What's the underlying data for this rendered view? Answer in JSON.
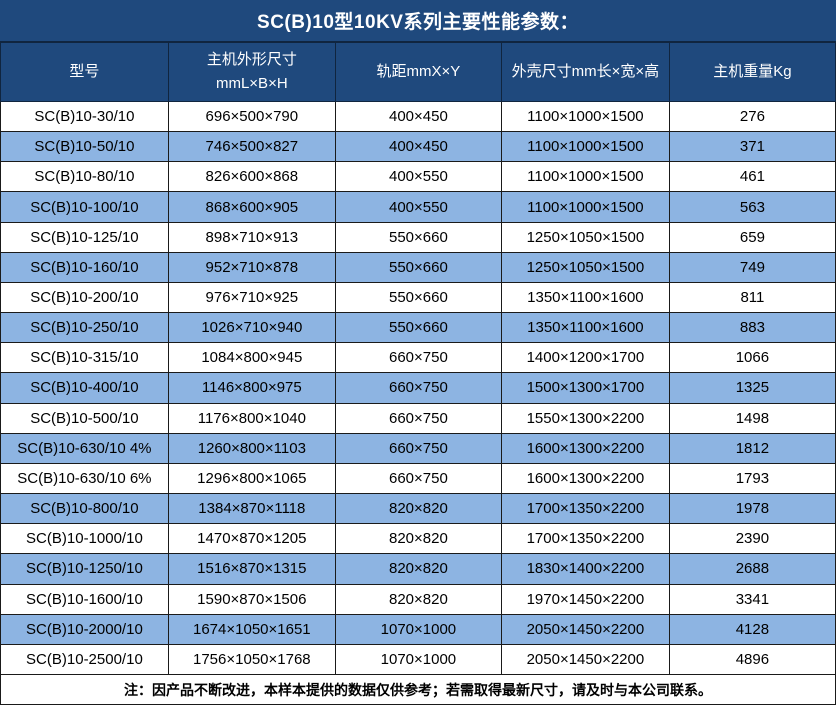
{
  "title": "SC(B)10型10KV系列主要性能参数：",
  "colors": {
    "header_blue": "#1F497D",
    "row_alt_blue": "#8DB4E2",
    "row_white": "#FFFFFF",
    "border": "#1A1A1A",
    "header_text": "#FFFFFF",
    "body_text": "#000000"
  },
  "table": {
    "columns": [
      "型号",
      "主机外形尺寸\nmmL×B×H",
      "轨距mmX×Y",
      "外壳尺寸mm长×宽×高",
      "主机重量Kg"
    ],
    "rows": [
      [
        "SC(B)10-30/10",
        "696×500×790",
        "400×450",
        "1100×1000×1500",
        "276"
      ],
      [
        "SC(B)10-50/10",
        "746×500×827",
        "400×450",
        "1100×1000×1500",
        "371"
      ],
      [
        "SC(B)10-80/10",
        "826×600×868",
        "400×550",
        "1100×1000×1500",
        "461"
      ],
      [
        "SC(B)10-100/10",
        "868×600×905",
        "400×550",
        "1100×1000×1500",
        "563"
      ],
      [
        "SC(B)10-125/10",
        "898×710×913",
        "550×660",
        "1250×1050×1500",
        "659"
      ],
      [
        "SC(B)10-160/10",
        "952×710×878",
        "550×660",
        "1250×1050×1500",
        "749"
      ],
      [
        "SC(B)10-200/10",
        "976×710×925",
        "550×660",
        "1350×1100×1600",
        "811"
      ],
      [
        "SC(B)10-250/10",
        "1026×710×940",
        "550×660",
        "1350×1100×1600",
        "883"
      ],
      [
        "SC(B)10-315/10",
        "1084×800×945",
        "660×750",
        "1400×1200×1700",
        "1066"
      ],
      [
        "SC(B)10-400/10",
        "1146×800×975",
        "660×750",
        "1500×1300×1700",
        "1325"
      ],
      [
        "SC(B)10-500/10",
        "1176×800×1040",
        "660×750",
        "1550×1300×2200",
        "1498"
      ],
      [
        "SC(B)10-630/10 4%",
        "1260×800×1103",
        "660×750",
        "1600×1300×2200",
        "1812"
      ],
      [
        "SC(B)10-630/10 6%",
        "1296×800×1065",
        "660×750",
        "1600×1300×2200",
        "1793"
      ],
      [
        "SC(B)10-800/10",
        "1384×870×1118",
        "820×820",
        "1700×1350×2200",
        "1978"
      ],
      [
        "SC(B)10-1000/10",
        "1470×870×1205",
        "820×820",
        "1700×1350×2200",
        "2390"
      ],
      [
        "SC(B)10-1250/10",
        "1516×870×1315",
        "820×820",
        "1830×1400×2200",
        "2688"
      ],
      [
        "SC(B)10-1600/10",
        "1590×870×1506",
        "820×820",
        "1970×1450×2200",
        "3341"
      ],
      [
        "SC(B)10-2000/10",
        "1674×1050×1651",
        "1070×1000",
        "2050×1450×2200",
        "4128"
      ],
      [
        "SC(B)10-2500/10",
        "1756×1050×1768",
        "1070×1000",
        "2050×1450×2200",
        "4896"
      ]
    ]
  },
  "footer_note": "注：因产品不断改进，本样本提供的数据仅供参考；若需取得最新尺寸，请及时与本公司联系。"
}
